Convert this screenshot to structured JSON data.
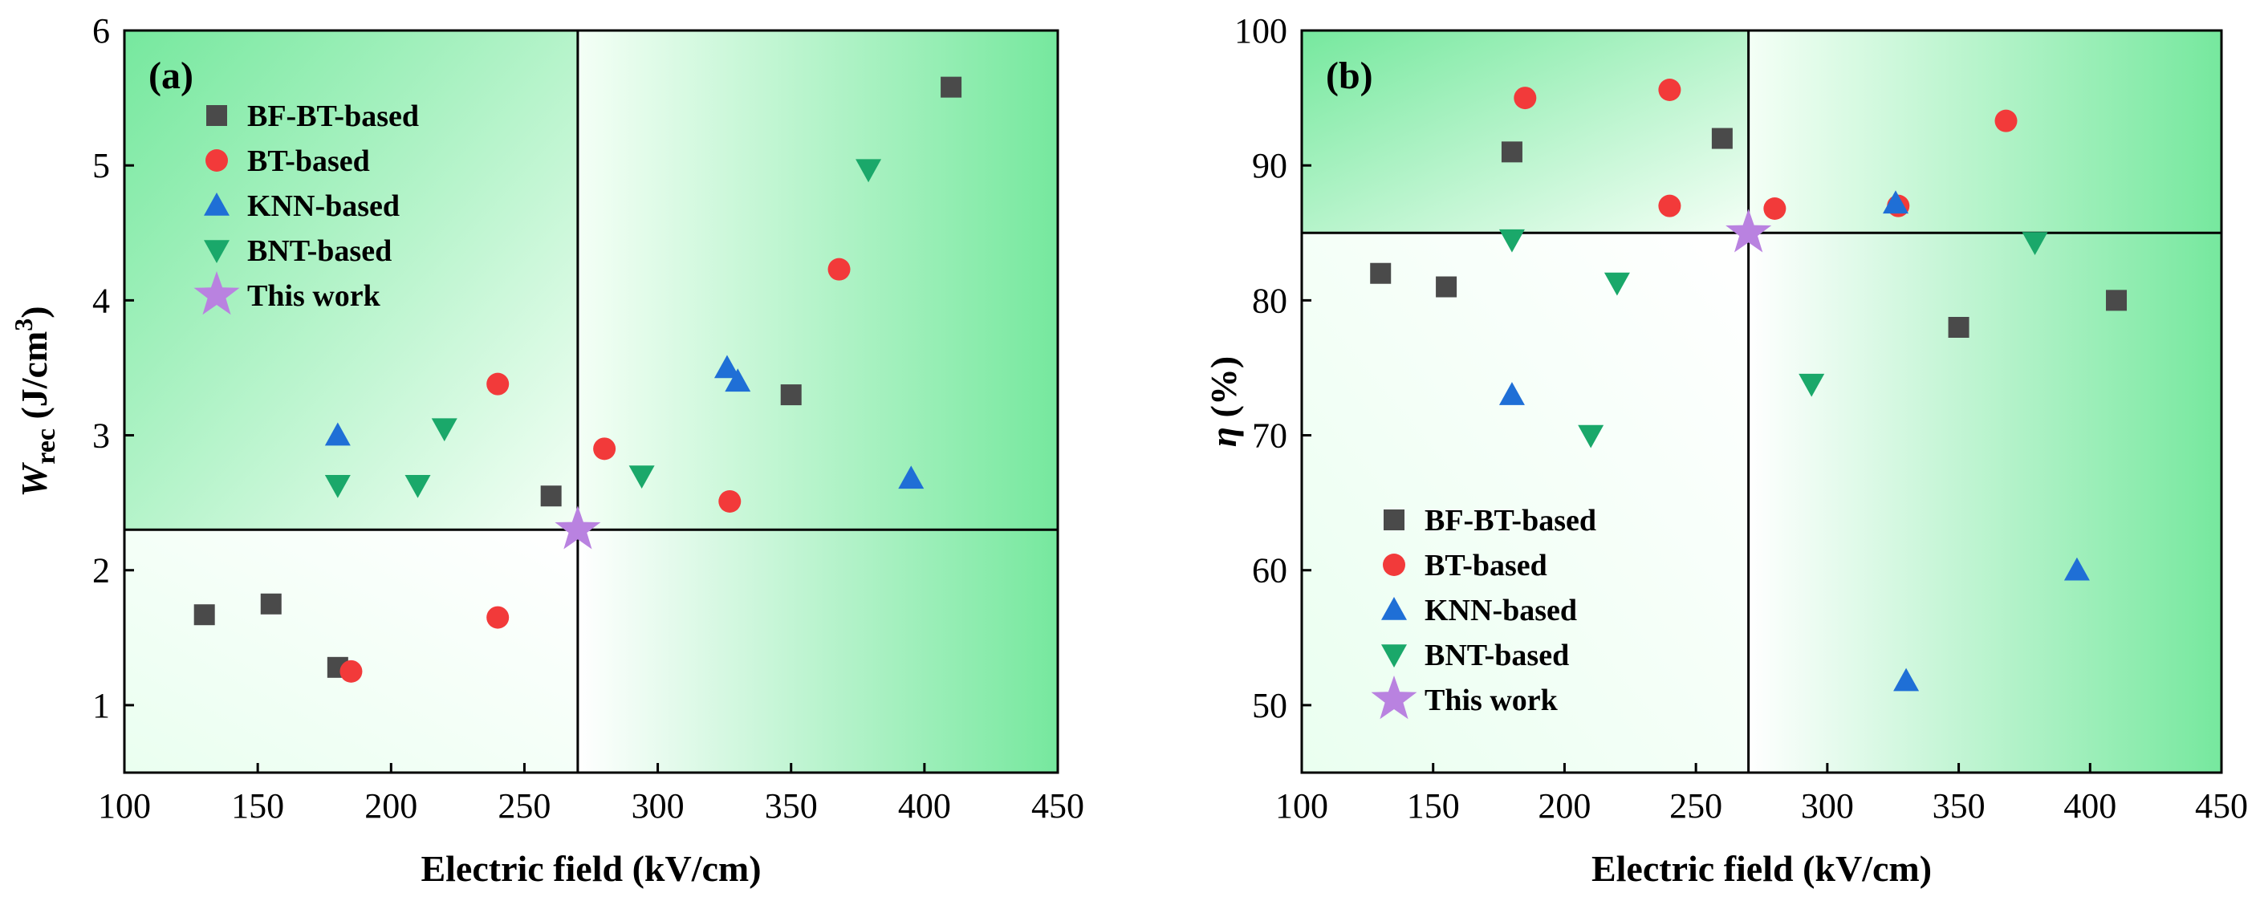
{
  "colors": {
    "BF-BT-based": "#4a4a4a",
    "BT-based": "#f23a3a",
    "KNN-based": "#1f6fd6",
    "BNT-based": "#1aa86a",
    "This work": "#b982e0",
    "bg_light": "#f4fff6",
    "bg_dark": "#76e89e"
  },
  "chart_data": [
    {
      "type": "scatter",
      "panel": "(a)",
      "xlabel": "Electric field (kV/cm)",
      "ylabel_main": "W",
      "ylabel_sub": "rec",
      "ylabel_unit_pre": " (J/cm",
      "ylabel_unit_sup": "3",
      "ylabel_unit_post": ")",
      "xlim": [
        100,
        450
      ],
      "ylim": [
        0.5,
        6
      ],
      "xticks": [
        100,
        150,
        200,
        250,
        300,
        350,
        400,
        450
      ],
      "xtick_labels": [
        "100",
        "150",
        "200",
        "250",
        "300",
        "350",
        "400",
        "450"
      ],
      "yticks": [
        1,
        2,
        3,
        4,
        5,
        6
      ],
      "ytick_labels": [
        "1",
        "2",
        "3",
        "4",
        "5",
        "6"
      ],
      "ref_x": 270,
      "ref_y": 2.3,
      "legend_position": "top-left",
      "series": [
        {
          "name": "BF-BT-based",
          "marker": "square",
          "x": [
            130,
            155,
            180,
            260,
            350,
            410
          ],
          "y": [
            1.67,
            1.75,
            1.28,
            2.55,
            3.3,
            5.58
          ]
        },
        {
          "name": "BT-based",
          "marker": "circle",
          "x": [
            185,
            240,
            240,
            280,
            327,
            368
          ],
          "y": [
            1.25,
            1.65,
            3.38,
            2.9,
            2.51,
            4.23
          ]
        },
        {
          "name": "KNN-based",
          "marker": "triangle-up",
          "x": [
            180,
            326,
            330,
            395
          ],
          "y": [
            3.0,
            3.5,
            3.4,
            2.68
          ]
        },
        {
          "name": "BNT-based",
          "marker": "triangle-down",
          "x": [
            180,
            210,
            220,
            294,
            379
          ],
          "y": [
            2.63,
            2.63,
            3.05,
            2.7,
            4.97
          ]
        },
        {
          "name": "This work",
          "marker": "star",
          "x": [
            270
          ],
          "y": [
            2.3
          ]
        }
      ]
    },
    {
      "type": "scatter",
      "panel": "(b)",
      "xlabel": "Electric field (kV/cm)",
      "ylabel_main": "η",
      "ylabel_unit_post": " (%)",
      "xlim": [
        100,
        450
      ],
      "ylim": [
        45,
        100
      ],
      "xticks": [
        100,
        150,
        200,
        250,
        300,
        350,
        400,
        450
      ],
      "xtick_labels": [
        "100",
        "150",
        "200",
        "250",
        "300",
        "350",
        "400",
        "450"
      ],
      "yticks": [
        50,
        60,
        70,
        80,
        90,
        100
      ],
      "ytick_labels": [
        "50",
        "60",
        "70",
        "80",
        "90",
        "100"
      ],
      "ref_x": 270,
      "ref_y": 85,
      "legend_position": "bottom-left",
      "series": [
        {
          "name": "BF-BT-based",
          "marker": "square",
          "x": [
            130,
            155,
            180,
            260,
            350,
            410
          ],
          "y": [
            82,
            81,
            91,
            92,
            78,
            80
          ]
        },
        {
          "name": "BT-based",
          "marker": "circle",
          "x": [
            185,
            240,
            240,
            280,
            327,
            368
          ],
          "y": [
            95,
            95.6,
            87,
            86.8,
            87,
            93.3
          ]
        },
        {
          "name": "KNN-based",
          "marker": "triangle-up",
          "x": [
            180,
            326,
            330,
            395
          ],
          "y": [
            73,
            87.2,
            51.8,
            60
          ]
        },
        {
          "name": "BNT-based",
          "marker": "triangle-down",
          "x": [
            180,
            210,
            220,
            294,
            379
          ],
          "y": [
            84.5,
            70,
            81.3,
            73.8,
            84.3
          ]
        },
        {
          "name": "This work",
          "marker": "star",
          "x": [
            270
          ],
          "y": [
            85
          ]
        }
      ]
    }
  ]
}
